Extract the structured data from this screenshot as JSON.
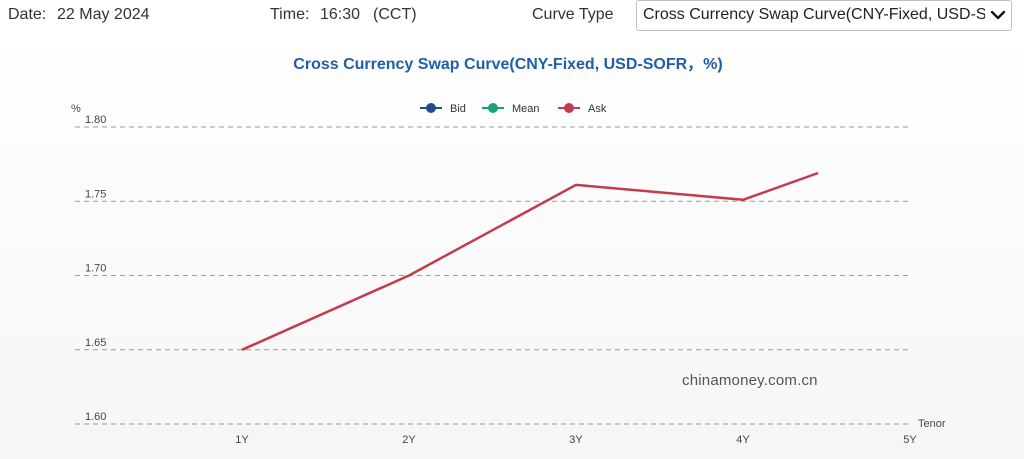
{
  "header": {
    "date_label": "Date:",
    "date_value": "22 May 2024",
    "time_label": "Time:",
    "time_value": "16:30",
    "timezone": "(CCT)",
    "curve_type_label": "Curve Type",
    "curve_type_selected": "Cross Currency Swap Curve(CNY-Fixed, USD-SOFR, %)"
  },
  "watermark": "chinamoney.com.cn",
  "chart_data": {
    "type": "line",
    "title": "Cross Currency Swap Curve(CNY-Fixed, USD-SOFR，%)",
    "ylabel": "%",
    "xlabel": "Tenor",
    "ylim": [
      1.6,
      1.8
    ],
    "y_ticks": [
      "1.60",
      "1.65",
      "1.70",
      "1.75",
      "1.80"
    ],
    "x_categories": [
      "1Y",
      "2Y",
      "3Y",
      "4Y",
      "5Y"
    ],
    "grid": "horizontal dashed",
    "legend_position": "top-center",
    "series": [
      {
        "name": "Bid",
        "color": "#1f4e8c",
        "points": []
      },
      {
        "name": "Mean",
        "color": "#1aa37a",
        "points": []
      },
      {
        "name": "Ask",
        "color": "#c23b4e",
        "points": [
          {
            "x": 1,
            "y": 1.65
          },
          {
            "x": 2,
            "y": 1.7
          },
          {
            "x": 3,
            "y": 1.761
          },
          {
            "x": 4,
            "y": 1.751
          },
          {
            "x": 4.45,
            "y": 1.769
          }
        ]
      }
    ]
  }
}
